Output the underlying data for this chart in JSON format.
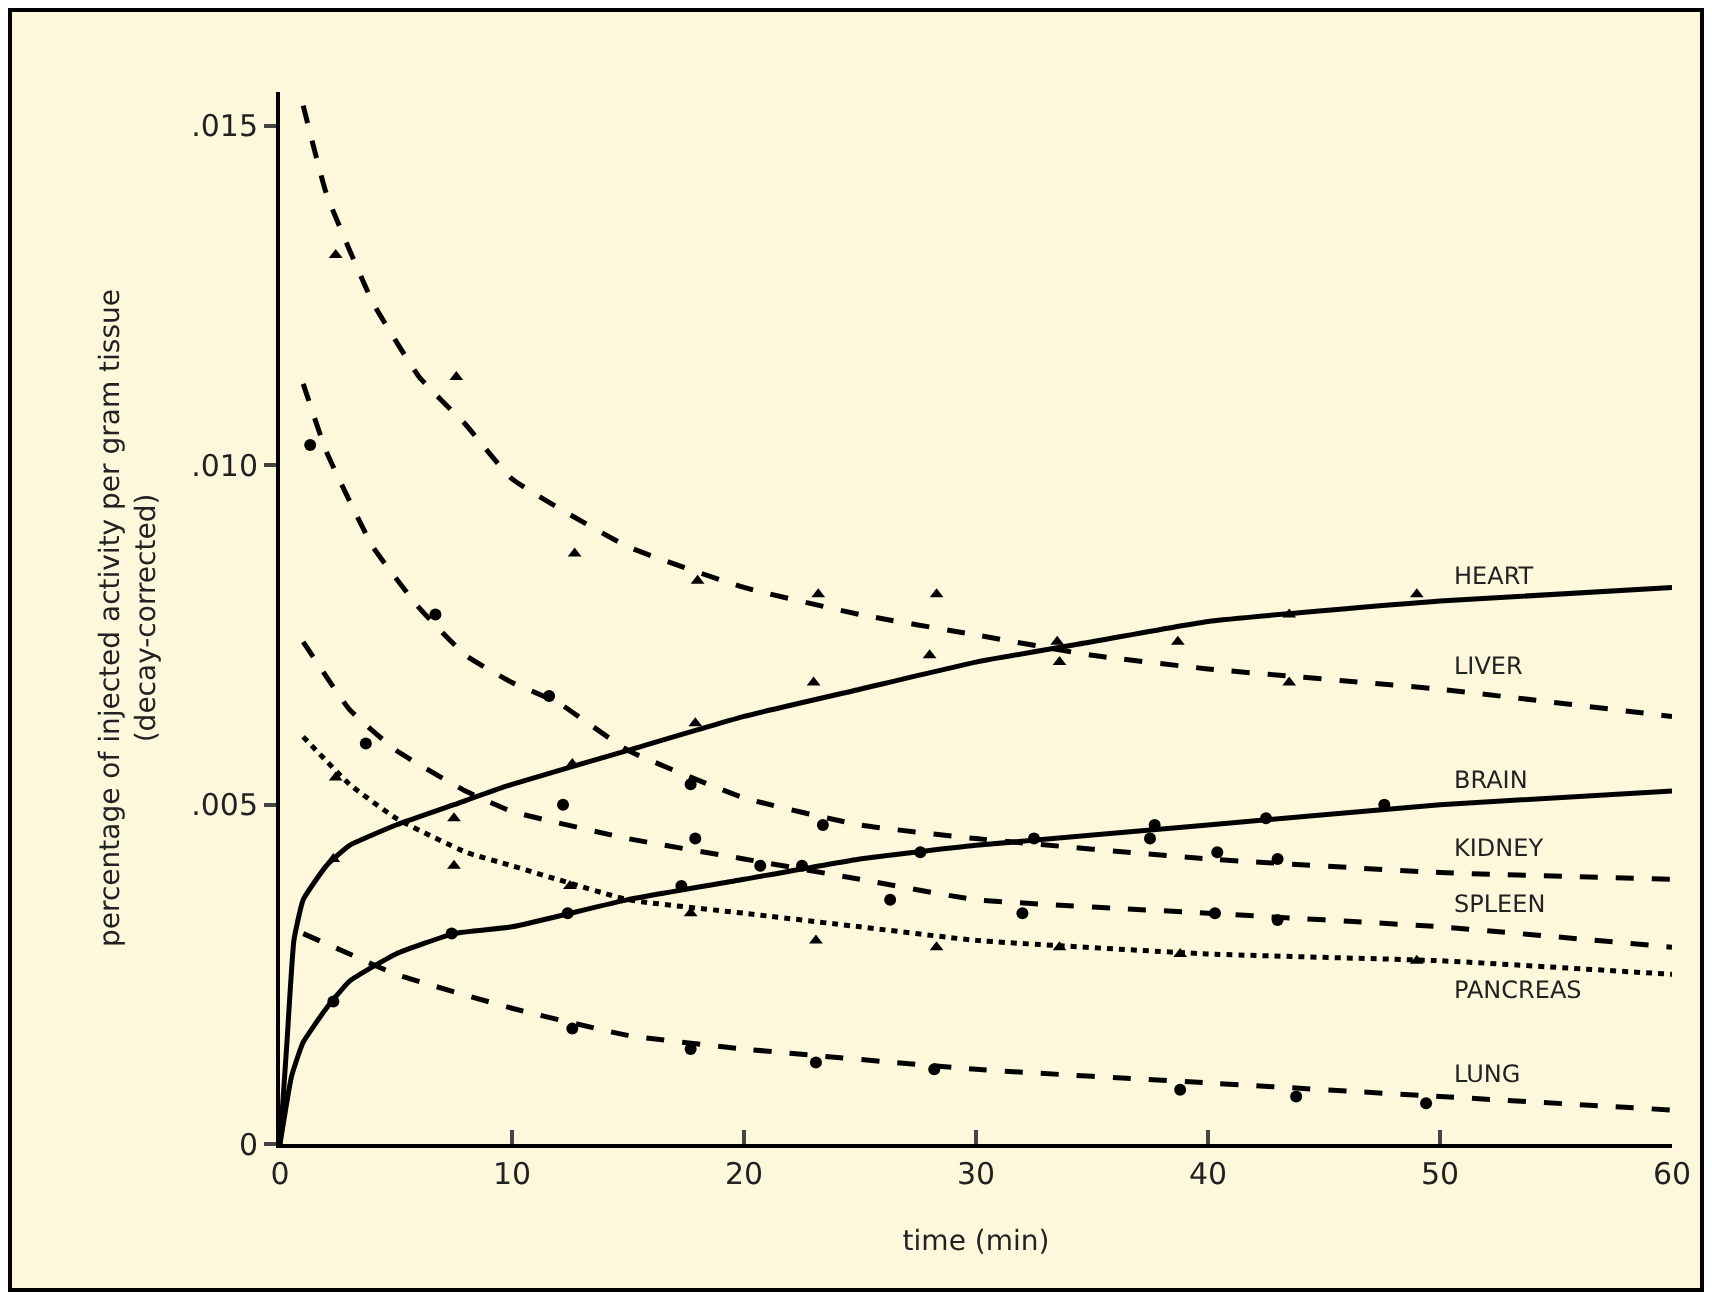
{
  "chart_data": {
    "type": "line",
    "xlabel": "time (min)",
    "ylabel": "percentage of injected activity per gram tissue\n(decay-corrected)",
    "xlim": [
      0,
      60
    ],
    "xticks": [
      0,
      10,
      20,
      30,
      40,
      50,
      60
    ],
    "ylim": [
      0,
      0.0155
    ],
    "yticks": [
      0,
      {
        "value": 0.005,
        "label": ".005"
      },
      {
        "value": 0.01,
        "label": ".010"
      },
      {
        "value": 0.015,
        "label": ".015"
      }
    ],
    "grid": false,
    "legend": false,
    "series": [
      {
        "name": "HEART",
        "line_style": "solid",
        "color": "#000000",
        "x": [
          0,
          0.3,
          0.6,
          1,
          2,
          3,
          5,
          7.5,
          10,
          15,
          20,
          25,
          30,
          35,
          40,
          50,
          60
        ],
        "values": [
          0,
          0.0015,
          0.003,
          0.0036,
          0.0041,
          0.0044,
          0.0047,
          0.005,
          0.0053,
          0.0058,
          0.0063,
          0.0067,
          0.0071,
          0.0074,
          0.0077,
          0.008,
          0.0082
        ]
      },
      {
        "name": "LIVER",
        "line_style": "dashed",
        "color": "#000000",
        "x": [
          1,
          2,
          4,
          6,
          8,
          10,
          15,
          20,
          25,
          30,
          35,
          40,
          50,
          60
        ],
        "values": [
          0.0153,
          0.014,
          0.0124,
          0.0113,
          0.0106,
          0.0098,
          0.0088,
          0.0082,
          0.0078,
          0.0075,
          0.0072,
          0.007,
          0.0067,
          0.0063
        ]
      },
      {
        "name": "BRAIN",
        "line_style": "solid",
        "color": "#000000",
        "x": [
          0,
          0.5,
          1,
          2,
          3,
          5,
          7.5,
          10,
          15,
          20,
          25,
          30,
          40,
          50,
          60
        ],
        "values": [
          0,
          0.001,
          0.0015,
          0.002,
          0.0024,
          0.0028,
          0.0031,
          0.0032,
          0.0036,
          0.0039,
          0.0042,
          0.0044,
          0.0047,
          0.005,
          0.0052
        ]
      },
      {
        "name": "KIDNEY",
        "line_style": "dashed",
        "color": "#000000",
        "x": [
          1,
          2,
          4,
          6,
          8,
          10,
          12,
          15,
          20,
          25,
          30,
          40,
          50,
          60
        ],
        "values": [
          0.0112,
          0.0102,
          0.0088,
          0.0079,
          0.0072,
          0.0068,
          0.0065,
          0.0058,
          0.0051,
          0.0047,
          0.0045,
          0.0042,
          0.004,
          0.0039
        ]
      },
      {
        "name": "SPLEEN",
        "line_style": "dashed",
        "color": "#000000",
        "x": [
          1,
          3,
          5,
          8,
          10,
          15,
          20,
          25,
          30,
          40,
          50,
          60
        ],
        "values": [
          0.0074,
          0.0064,
          0.0058,
          0.0052,
          0.0049,
          0.0045,
          0.0042,
          0.0039,
          0.0036,
          0.0034,
          0.0032,
          0.0029
        ]
      },
      {
        "name": "PANCREAS",
        "line_style": "dotted",
        "color": "#000000",
        "x": [
          1,
          3,
          5,
          8,
          10,
          15,
          20,
          25,
          30,
          40,
          50,
          60
        ],
        "values": [
          0.006,
          0.0053,
          0.0048,
          0.0043,
          0.0041,
          0.0036,
          0.0034,
          0.0032,
          0.003,
          0.0028,
          0.0027,
          0.0025
        ]
      },
      {
        "name": "LUNG",
        "line_style": "dashed",
        "color": "#000000",
        "x": [
          1,
          3,
          5,
          10,
          15,
          20,
          30,
          40,
          50,
          60
        ],
        "values": [
          0.0031,
          0.0028,
          0.0025,
          0.002,
          0.0016,
          0.0014,
          0.0011,
          0.0009,
          0.0007,
          0.0005
        ]
      },
      {
        "type": "scatter",
        "marker": "triangle",
        "color": "#000000",
        "x": [
          2.3,
          7.5,
          12.6,
          17.9,
          23,
          28,
          33.5,
          43.5,
          49
        ],
        "values": [
          0.0042,
          0.0048,
          0.0056,
          0.0062,
          0.0068,
          0.0072,
          0.0074,
          0.0078,
          0.0081
        ]
      },
      {
        "type": "scatter",
        "marker": "triangle",
        "color": "#000000",
        "x": [
          2.4,
          7.6,
          12.7,
          18,
          23.2,
          28.3,
          33.6,
          38.7,
          43.5
        ],
        "values": [
          0.0131,
          0.0113,
          0.0087,
          0.0083,
          0.0081,
          0.0081,
          0.0071,
          0.0074,
          0.0068
        ]
      },
      {
        "type": "scatter",
        "marker": "circle",
        "color": "#000000",
        "x": [
          2.3,
          7.4,
          12.4,
          17.3,
          22.5,
          27.6,
          32.5,
          37.7,
          42.5,
          47.6
        ],
        "values": [
          0.0021,
          0.0031,
          0.0034,
          0.0038,
          0.0041,
          0.0043,
          0.0045,
          0.0047,
          0.0048,
          0.005
        ]
      },
      {
        "type": "scatter",
        "marker": "circle",
        "color": "#000000",
        "x": [
          1.3,
          6.7,
          11.6,
          17.7,
          23.4,
          37.5,
          40.4,
          43
        ],
        "values": [
          0.0103,
          0.0078,
          0.0066,
          0.0053,
          0.0047,
          0.0045,
          0.0043,
          0.0042
        ]
      },
      {
        "type": "scatter",
        "marker": "circle",
        "color": "#000000",
        "x": [
          3.7,
          12.2,
          17.9,
          20.7,
          26.3,
          32,
          40.3,
          43
        ],
        "values": [
          0.0059,
          0.005,
          0.0045,
          0.0041,
          0.0036,
          0.0034,
          0.0034,
          0.0033
        ]
      },
      {
        "type": "scatter",
        "marker": "triangle",
        "color": "#000000",
        "x": [
          2.4,
          7.5,
          12.5,
          17.7,
          23.1,
          28.3,
          33.6,
          38.8,
          49
        ],
        "values": [
          0.0054,
          0.0041,
          0.0038,
          0.0034,
          0.003,
          0.0029,
          0.0029,
          0.0028,
          0.0027
        ]
      },
      {
        "type": "scatter",
        "marker": "circle",
        "color": "#000000",
        "x": [
          12.6,
          17.7,
          23.1,
          28.2,
          38.8,
          43.8,
          49.4
        ],
        "values": [
          0.0017,
          0.0014,
          0.0012,
          0.0011,
          0.0008,
          0.0007,
          0.0006
        ]
      }
    ]
  }
}
